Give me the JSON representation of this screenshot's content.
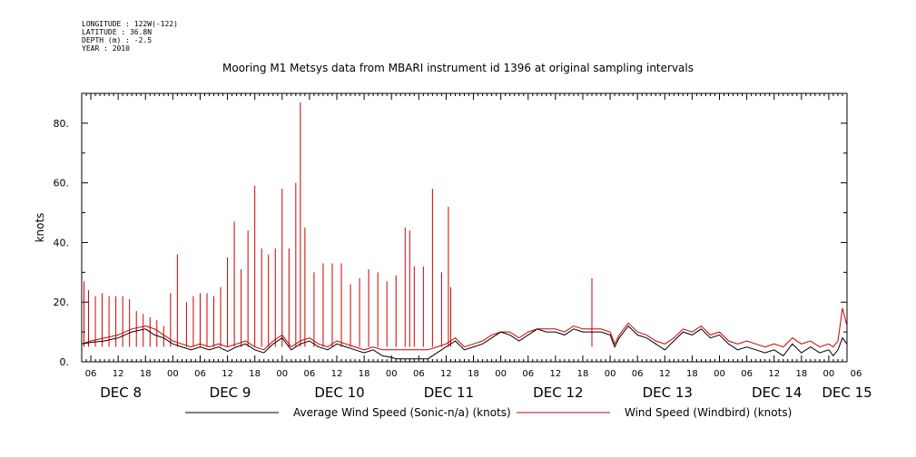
{
  "meta": {
    "longitude": "LONGITUDE : 122W(-122)",
    "latitude": "LATITUDE : 36.8N",
    "depth": "DEPTH (m) : -2.5",
    "year": "YEAR : 2010"
  },
  "chart_data": {
    "type": "line",
    "title": "Mooring M1 Metsys data from MBARI instrument id 1396 at original sampling intervals",
    "ylabel": "knots",
    "xlabel": "",
    "ylim": [
      0,
      90
    ],
    "yticks": [
      0,
      20,
      40,
      60,
      80
    ],
    "ytick_labels": [
      "0.",
      "20.",
      "40.",
      "60.",
      "80."
    ],
    "xlim_hours": [
      4,
      172
    ],
    "hour_ticks": [
      "06",
      "12",
      "18",
      "00",
      "06",
      "12",
      "18",
      "00",
      "06",
      "12",
      "18",
      "00",
      "06",
      "12",
      "18",
      "00",
      "06",
      "12",
      "18",
      "00",
      "06",
      "12",
      "18",
      "00",
      "06",
      "12",
      "18",
      "00",
      "06"
    ],
    "day_labels": [
      "DEC  8",
      "DEC  9",
      "DEC 10",
      "DEC 11",
      "DEC 12",
      "DEC 13",
      "DEC 14",
      "DEC 15"
    ],
    "x_units": "hours since 2010-12-08 00:00",
    "grid": false,
    "legend_placement": "bottom",
    "series": [
      {
        "name": "Average Wind Speed (Sonic-n/a) (knots)",
        "color": "#000000",
        "points": [
          [
            4,
            6
          ],
          [
            6,
            6.5
          ],
          [
            9,
            7
          ],
          [
            12,
            8
          ],
          [
            15,
            10
          ],
          [
            18,
            11
          ],
          [
            20,
            9
          ],
          [
            22,
            8
          ],
          [
            24,
            6
          ],
          [
            26,
            5
          ],
          [
            28,
            4
          ],
          [
            30,
            5
          ],
          [
            32,
            4
          ],
          [
            34,
            5
          ],
          [
            36,
            3.5
          ],
          [
            38,
            5
          ],
          [
            40,
            6
          ],
          [
            42,
            4
          ],
          [
            44,
            3
          ],
          [
            46,
            6
          ],
          [
            48,
            8
          ],
          [
            50,
            4
          ],
          [
            52,
            6
          ],
          [
            54,
            7
          ],
          [
            56,
            5
          ],
          [
            58,
            4
          ],
          [
            60,
            6
          ],
          [
            62,
            5
          ],
          [
            64,
            4
          ],
          [
            66,
            3
          ],
          [
            68,
            4
          ],
          [
            70,
            2
          ],
          [
            72,
            1.5
          ],
          [
            73,
            1
          ],
          [
            76,
            1
          ],
          [
            80,
            1
          ],
          [
            82,
            3
          ],
          [
            84,
            5
          ],
          [
            86,
            7
          ],
          [
            88,
            4
          ],
          [
            90,
            5
          ],
          [
            92,
            6
          ],
          [
            94,
            8
          ],
          [
            96,
            10
          ],
          [
            98,
            9
          ],
          [
            100,
            7
          ],
          [
            102,
            9
          ],
          [
            104,
            11
          ],
          [
            106,
            10
          ],
          [
            108,
            10
          ],
          [
            110,
            9
          ],
          [
            112,
            11
          ],
          [
            114,
            10
          ],
          [
            116,
            10
          ],
          [
            118,
            10
          ],
          [
            120,
            9
          ],
          [
            121,
            5
          ],
          [
            122,
            8
          ],
          [
            124,
            12
          ],
          [
            126,
            9
          ],
          [
            128,
            8
          ],
          [
            130,
            6
          ],
          [
            132,
            4
          ],
          [
            134,
            7
          ],
          [
            136,
            10
          ],
          [
            138,
            9
          ],
          [
            140,
            11
          ],
          [
            142,
            8
          ],
          [
            144,
            9
          ],
          [
            146,
            6
          ],
          [
            148,
            4
          ],
          [
            150,
            5
          ],
          [
            152,
            4
          ],
          [
            154,
            3
          ],
          [
            156,
            4
          ],
          [
            158,
            2
          ],
          [
            160,
            6
          ],
          [
            162,
            3
          ],
          [
            164,
            5
          ],
          [
            166,
            3
          ],
          [
            168,
            4
          ],
          [
            169,
            2
          ],
          [
            170,
            4
          ],
          [
            171,
            8
          ],
          [
            172,
            6
          ]
        ]
      },
      {
        "name": "Wind Speed (Windbird) (knots)",
        "color": "#cc0000",
        "points": [
          [
            4,
            6
          ],
          [
            6,
            7
          ],
          [
            9,
            8
          ],
          [
            12,
            9
          ],
          [
            15,
            11
          ],
          [
            18,
            12
          ],
          [
            20,
            11
          ],
          [
            22,
            9
          ],
          [
            24,
            7
          ],
          [
            26,
            6
          ],
          [
            28,
            5
          ],
          [
            30,
            6
          ],
          [
            32,
            5
          ],
          [
            34,
            6
          ],
          [
            36,
            5
          ],
          [
            38,
            6
          ],
          [
            40,
            7
          ],
          [
            42,
            5
          ],
          [
            44,
            4
          ],
          [
            46,
            7
          ],
          [
            48,
            9
          ],
          [
            50,
            5
          ],
          [
            52,
            7
          ],
          [
            54,
            8
          ],
          [
            56,
            6
          ],
          [
            58,
            5
          ],
          [
            60,
            7
          ],
          [
            62,
            6
          ],
          [
            64,
            5
          ],
          [
            66,
            4
          ],
          [
            68,
            5
          ],
          [
            70,
            4
          ],
          [
            72,
            4
          ],
          [
            73,
            4
          ],
          [
            76,
            4
          ],
          [
            80,
            4
          ],
          [
            82,
            5
          ],
          [
            84,
            6
          ],
          [
            86,
            8
          ],
          [
            88,
            5
          ],
          [
            90,
            6
          ],
          [
            92,
            7
          ],
          [
            94,
            9
          ],
          [
            96,
            10
          ],
          [
            98,
            10
          ],
          [
            100,
            8
          ],
          [
            102,
            10
          ],
          [
            104,
            11
          ],
          [
            106,
            11
          ],
          [
            108,
            11
          ],
          [
            110,
            10
          ],
          [
            112,
            12
          ],
          [
            114,
            11
          ],
          [
            116,
            11
          ],
          [
            118,
            11
          ],
          [
            120,
            10
          ],
          [
            121,
            6
          ],
          [
            122,
            9
          ],
          [
            124,
            13
          ],
          [
            126,
            10
          ],
          [
            128,
            9
          ],
          [
            130,
            7
          ],
          [
            132,
            6
          ],
          [
            134,
            8
          ],
          [
            136,
            11
          ],
          [
            138,
            10
          ],
          [
            140,
            12
          ],
          [
            142,
            9
          ],
          [
            144,
            10
          ],
          [
            146,
            7
          ],
          [
            148,
            6
          ],
          [
            150,
            7
          ],
          [
            152,
            6
          ],
          [
            154,
            5
          ],
          [
            156,
            6
          ],
          [
            158,
            5
          ],
          [
            160,
            8
          ],
          [
            162,
            6
          ],
          [
            164,
            7
          ],
          [
            166,
            5
          ],
          [
            168,
            6
          ],
          [
            169,
            5
          ],
          [
            170,
            7
          ],
          [
            171,
            18
          ],
          [
            172,
            12
          ]
        ],
        "spikes": [
          [
            4.5,
            27
          ],
          [
            5.5,
            24
          ],
          [
            7,
            22
          ],
          [
            8.5,
            23
          ],
          [
            10,
            22
          ],
          [
            11.5,
            22
          ],
          [
            13,
            22
          ],
          [
            14.5,
            21
          ],
          [
            16,
            17
          ],
          [
            17.5,
            16
          ],
          [
            19,
            15
          ],
          [
            20.5,
            14
          ],
          [
            22,
            12
          ],
          [
            23.5,
            23
          ],
          [
            25,
            36
          ],
          [
            27,
            20
          ],
          [
            28.5,
            22
          ],
          [
            30,
            23
          ],
          [
            31.5,
            23
          ],
          [
            33,
            22
          ],
          [
            34.5,
            25
          ],
          [
            36,
            35
          ],
          [
            37.5,
            47
          ],
          [
            39,
            31
          ],
          [
            40.5,
            44
          ],
          [
            42,
            59
          ],
          [
            43.5,
            38
          ],
          [
            45,
            36
          ],
          [
            46.5,
            38
          ],
          [
            48,
            58
          ],
          [
            49.5,
            38
          ],
          [
            51,
            60
          ],
          [
            52,
            87
          ],
          [
            53,
            45
          ],
          [
            55,
            30
          ],
          [
            57,
            33
          ],
          [
            59,
            33
          ],
          [
            61,
            33
          ],
          [
            63,
            26
          ],
          [
            65,
            28
          ],
          [
            67,
            31
          ],
          [
            69,
            30
          ],
          [
            71,
            27
          ],
          [
            73,
            29
          ],
          [
            75,
            45
          ],
          [
            76,
            44
          ],
          [
            77,
            32
          ],
          [
            79,
            32
          ],
          [
            81,
            58
          ],
          [
            83,
            30
          ],
          [
            84.5,
            52
          ],
          [
            85,
            25
          ],
          [
            116,
            28
          ]
        ]
      }
    ]
  }
}
